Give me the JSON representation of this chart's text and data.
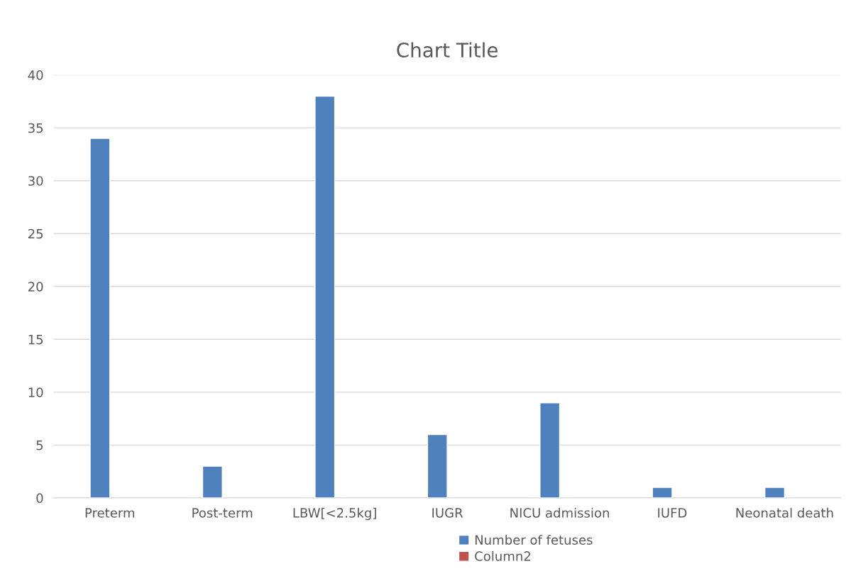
{
  "chart_data": {
    "type": "bar",
    "title": "Chart Title",
    "categories": [
      "Preterm",
      "Post-term",
      "LBW[<2.5kg]",
      "IUGR",
      "NICU admission",
      "IUFD",
      "Neonatal death"
    ],
    "series": [
      {
        "name": "Number of fetuses",
        "color": "#4f81bd",
        "values": [
          34,
          3,
          38,
          6,
          9,
          1,
          1
        ]
      },
      {
        "name": "Column2",
        "color": "#c0504d",
        "values": [
          null,
          null,
          null,
          null,
          null,
          null,
          null
        ]
      }
    ],
    "ylim": [
      0,
      40
    ],
    "yticks": [
      0,
      5,
      10,
      15,
      20,
      25,
      30,
      35,
      40
    ],
    "grid": "y",
    "legend": "bottom"
  }
}
